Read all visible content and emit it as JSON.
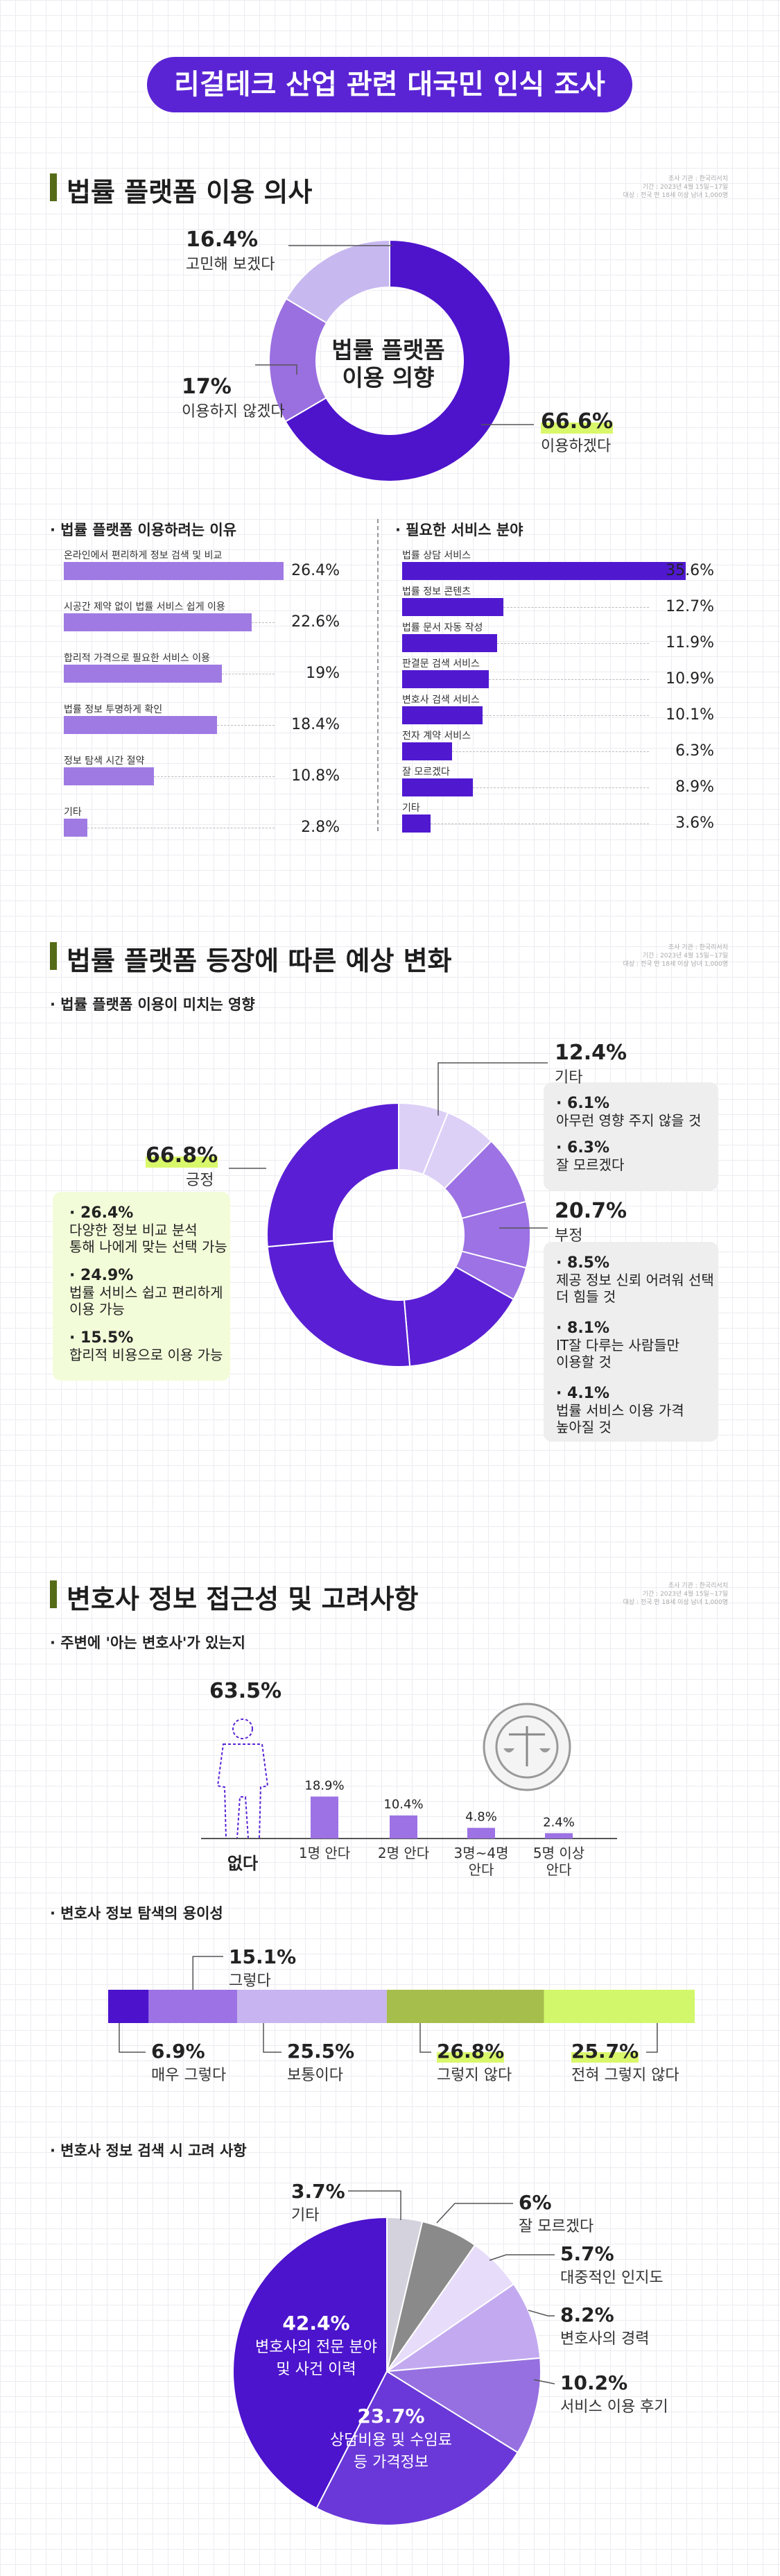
{
  "main_title": "리걸테크 산업 관련 대국민 인식 조사",
  "colors": {
    "accent": "#5a24d4",
    "green_bar": "#556b17",
    "highlight": "#d9f76a"
  },
  "sec1": {
    "title": "법률 플랫폼 이용 의사",
    "source": [
      "조사 기관 : 한국리서치",
      "기간 : 2023년 4월 15일~17일",
      "대상 : 전국 만 18세 이상 남녀 1,000명"
    ],
    "donut_center": [
      "법률 플랫폼",
      "이용 의향"
    ],
    "labels": [
      {
        "pct": "16.4%",
        "text": "고민해 보겠다"
      },
      {
        "pct": "17%",
        "text": "이용하지 않겠다"
      },
      {
        "pct": "66.6%",
        "text": "이용하겠다"
      }
    ],
    "reasons_title": "· 법률 플랫폼 이용하려는 이유",
    "services_title": "· 필요한 서비스 분야"
  },
  "sec2": {
    "title": "법률 플랫폼 등장에 따른 예상 변화",
    "source": [
      "조사 기관 : 한국리서치",
      "기간 : 2023년 4월 15일~17일",
      "대상 : 전국 만 18세 이상 남녀 1,000명"
    ],
    "subtitle": "· 법률 플랫폼 이용이 미치는 영향",
    "positive": {
      "pct": "66.8%",
      "text": "긍정",
      "items": [
        {
          "pct": "· 26.4%",
          "text": [
            "다양한 정보 비교 분석",
            "통해 나에게 맞는 선택 가능"
          ]
        },
        {
          "pct": "· 24.9%",
          "text": [
            "법률 서비스 쉽고 편리하게",
            "이용 가능"
          ]
        },
        {
          "pct": "· 15.5%",
          "text": [
            "합리적 비용으로 이용 가능"
          ]
        }
      ]
    },
    "other": {
      "pct": "12.4%",
      "text": "기타",
      "items": [
        {
          "pct": "· 6.1%",
          "text": [
            "아무런 영향 주지 않을 것"
          ]
        },
        {
          "pct": "· 6.3%",
          "text": [
            "잘 모르겠다"
          ]
        }
      ]
    },
    "negative": {
      "pct": "20.7%",
      "text": "부정",
      "items": [
        {
          "pct": "· 8.5%",
          "text": [
            "제공 정보 신뢰 어려워 선택",
            "더 힘들 것"
          ]
        },
        {
          "pct": "· 8.1%",
          "text": [
            "IT잘 다루는 사람들만",
            "이용할 것"
          ]
        },
        {
          "pct": "· 4.1%",
          "text": [
            "법률 서비스 이용 가격",
            "높아질 것"
          ]
        }
      ]
    }
  },
  "sec3": {
    "title": "변호사 정보 접근성 및 고려사항",
    "source": [
      "조사 기관 : 한국리서치",
      "기간 : 2023년 4월 15일~17일",
      "대상 : 전국 만 18세 이상 남녀 1,000명"
    ],
    "sub1": "· 주변에 '아는 변호사'가 있는지",
    "sub2": "· 변호사 정보 탐색의 용이성",
    "sub3": "· 변호사 정보 검색 시 고려 사항",
    "none_pct": "63.5%",
    "none_label": "없다",
    "ease_labels": [
      {
        "pct": "15.1%",
        "text": "그렇다"
      },
      {
        "pct": "6.9%",
        "text": "매우 그렇다"
      },
      {
        "pct": "25.5%",
        "text": "보통이다"
      },
      {
        "pct": "26.8%",
        "text": "그렇지 않다"
      },
      {
        "pct": "25.7%",
        "text": "전혀 그렇지 않다"
      }
    ],
    "consider_labels": [
      {
        "pct": "3.7%",
        "text": "기타"
      },
      {
        "pct": "6%",
        "text": "잘 모르겠다"
      },
      {
        "pct": "5.7%",
        "text": "대중적인 인지도"
      },
      {
        "pct": "8.2%",
        "text": "변호사의 경력"
      },
      {
        "pct": "10.2%",
        "text": "서비스 이용 후기"
      },
      {
        "pct": "23.7%",
        "text": [
          "상담비용 및 수임료",
          "등 가격정보"
        ]
      },
      {
        "pct": "42.4%",
        "text": [
          "변호사의 전문 분야",
          "및 사건 이력"
        ]
      }
    ]
  },
  "chart_data": [
    {
      "type": "pie",
      "title": "법률 플랫폼 이용 의사",
      "categories": [
        "이용하겠다",
        "이용하지 않겠다",
        "고민해 보겠다"
      ],
      "values": [
        66.6,
        17,
        16.4
      ]
    },
    {
      "type": "bar",
      "title": "법률 플랫폼 이용하려는 이유",
      "categories": [
        "온라인에서 편리하게 정보 검색 및 비교",
        "시공간 제약 없이 법률 서비스 쉽게 이용",
        "합리적 가격으로 필요한 서비스 이용",
        "법률 정보 투명하게 확인",
        "정보 탐색 시간 절약",
        "기타"
      ],
      "values": [
        26.4,
        22.6,
        19,
        18.4,
        10.8,
        2.8
      ],
      "labels": [
        "26.4%",
        "22.6%",
        "19%",
        "18.4%",
        "10.8%",
        "2.8%"
      ]
    },
    {
      "type": "bar",
      "title": "필요한 서비스 분야",
      "categories": [
        "법률 상담 서비스",
        "법률 정보 콘텐츠",
        "법률 문서 자동 작성",
        "판결문 검색 서비스",
        "변호사 검색 서비스",
        "전자 계약 서비스",
        "잘 모르겠다",
        "기타"
      ],
      "values": [
        35.6,
        12.7,
        11.9,
        10.9,
        10.1,
        6.3,
        8.9,
        3.6
      ],
      "labels": [
        "35.6%",
        "12.7%",
        "11.9%",
        "10.9%",
        "10.1%",
        "6.3%",
        "8.9%",
        "3.6%"
      ]
    },
    {
      "type": "pie",
      "title": "법률 플랫폼 이용이 미치는 영향",
      "categories": [
        "아무런 영향 주지 않을 것",
        "잘 모르겠다",
        "제공 정보 신뢰 어려워 선택 더 힘들 것",
        "IT잘 다루는 사람들만 이용할 것",
        "법률 서비스 이용 가격 높아질 것",
        "합리적 비용으로 이용 가능",
        "법률 서비스 쉽고 편리하게 이용 가능",
        "다양한 정보 비교 분석 통해 나에게 맞는 선택 가능"
      ],
      "values": [
        6.1,
        6.3,
        8.5,
        8.1,
        4.1,
        15.5,
        24.9,
        26.4
      ]
    },
    {
      "type": "bar",
      "title": "주변에 '아는 변호사'가 있는지",
      "categories": [
        "없다",
        "1명 안다",
        "2명 안다",
        "3명~4명 안다",
        "5명 이상 안다"
      ],
      "values": [
        63.5,
        18.9,
        10.4,
        4.8,
        2.4
      ],
      "labels": [
        "63.5%",
        "18.9%",
        "10.4%",
        "4.8%",
        "2.4%"
      ]
    },
    {
      "type": "bar",
      "title": "변호사 정보 탐색의 용이성",
      "categories": [
        "매우 그렇다",
        "그렇다",
        "보통이다",
        "그렇지 않다",
        "전혀 그렇지 않다"
      ],
      "values": [
        6.9,
        15.1,
        25.5,
        26.8,
        25.7
      ]
    },
    {
      "type": "pie",
      "title": "변호사 정보 검색 시 고려 사항",
      "categories": [
        "기타",
        "잘 모르겠다",
        "대중적인 인지도",
        "변호사의 경력",
        "서비스 이용 후기",
        "상담비용 및 수임료 등 가격정보",
        "변호사의 전문 분야 및 사건 이력"
      ],
      "values": [
        3.7,
        6,
        5.7,
        8.2,
        10.2,
        23.7,
        42.4
      ]
    }
  ]
}
